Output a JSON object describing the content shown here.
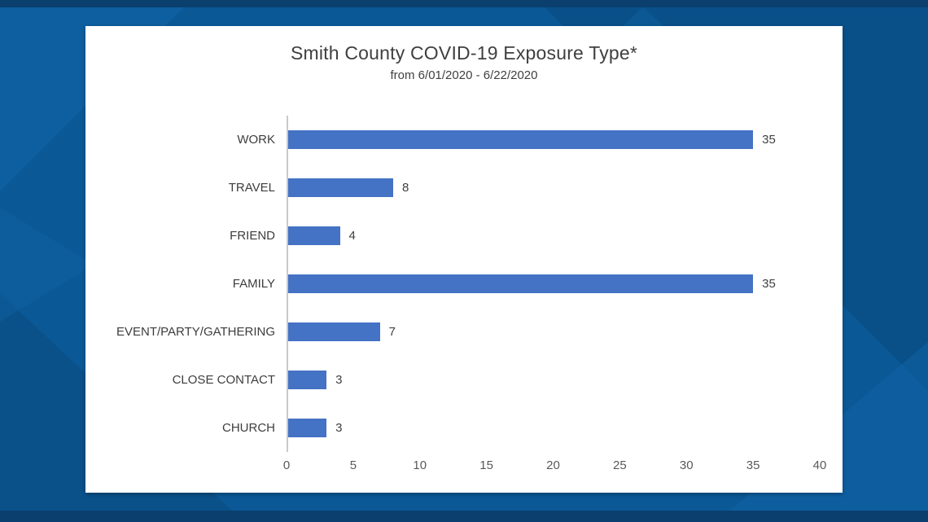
{
  "chart_data": {
    "type": "bar",
    "orientation": "horizontal",
    "title": "Smith County COVID-19 Exposure Type*",
    "subtitle": "from 6/01/2020 - 6/22/2020",
    "categories": [
      "WORK",
      "TRAVEL",
      "FRIEND",
      "FAMILY",
      "EVENT/PARTY/GATHERING",
      "CLOSE CONTACT",
      "CHURCH"
    ],
    "values": [
      35,
      8,
      4,
      35,
      7,
      3,
      3
    ],
    "xlabel": "",
    "ylabel": "",
    "xlim": [
      0,
      40
    ],
    "x_ticks": [
      0,
      5,
      10,
      15,
      20,
      25,
      30,
      35,
      40
    ],
    "grid": false,
    "legend": "none",
    "value_labels_shown": true,
    "bar_color": "#4472C4"
  },
  "colors": {
    "background_base": "#0b5897",
    "background_dark": "#094a7e",
    "background_darker": "#0a3f6e",
    "background_light": "#1266a8",
    "card_background": "#ffffff",
    "title_color": "#3f3f3f",
    "value_label_color": "#404040",
    "tick_label_color": "#595959",
    "axis_line_color": "#c9c9c9"
  }
}
